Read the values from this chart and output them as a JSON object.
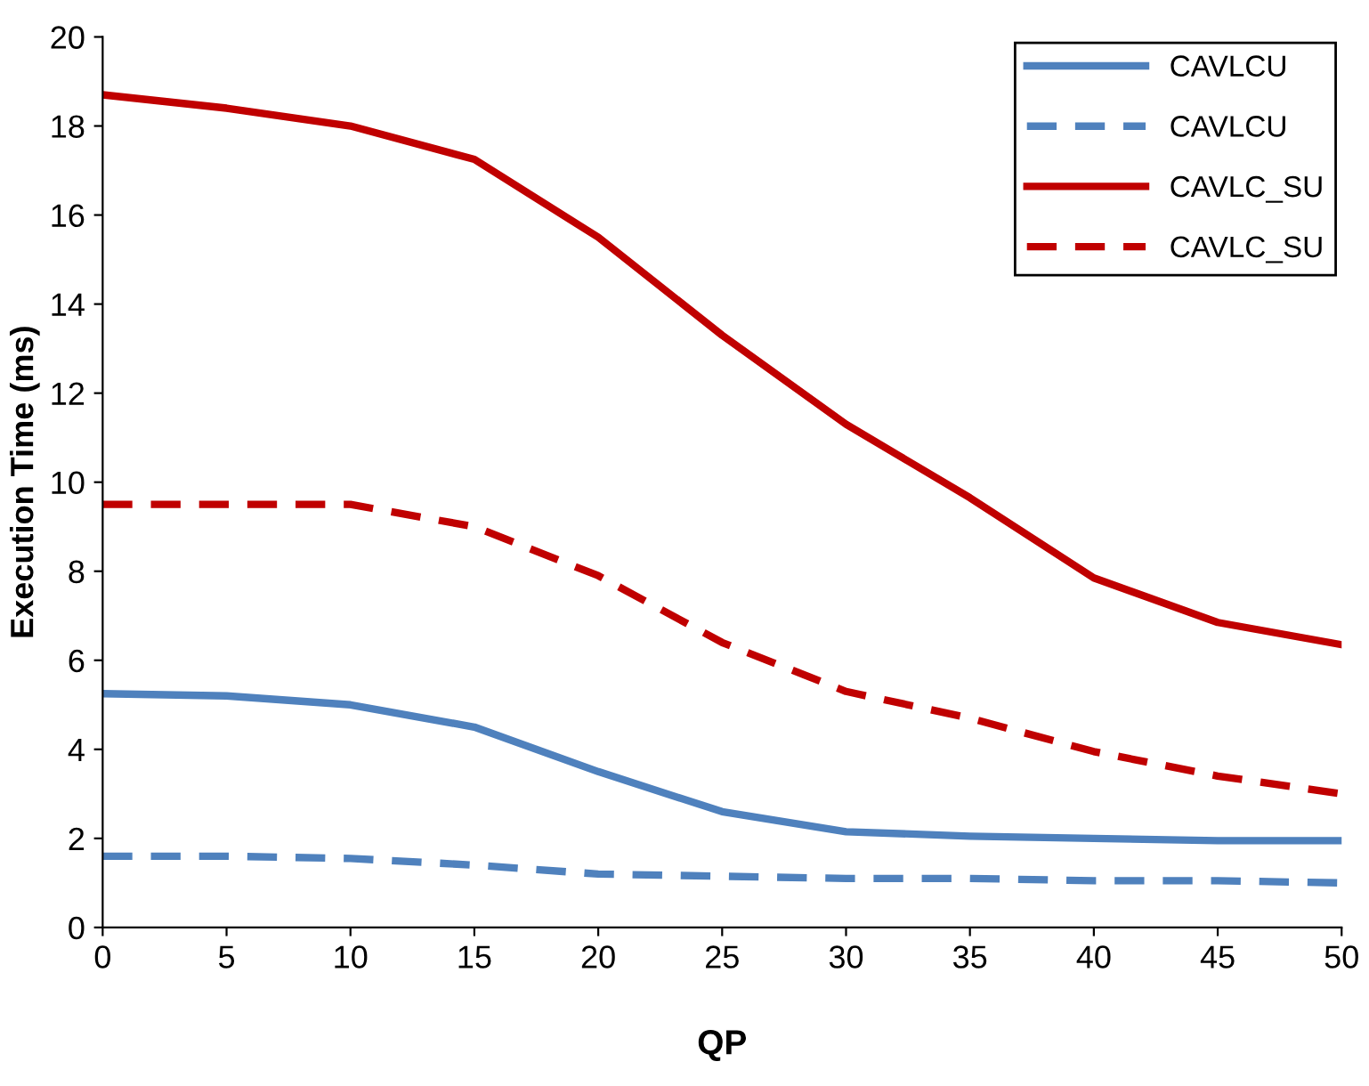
{
  "chart_data": {
    "type": "line",
    "xlabel": "QP",
    "ylabel": "Execution Time (ms)",
    "x": [
      0,
      5,
      10,
      15,
      20,
      25,
      30,
      35,
      40,
      45,
      50
    ],
    "series": [
      {
        "name": "CAVLCU",
        "color": "#4f81bd",
        "line_style": "solid",
        "values": [
          5.25,
          5.2,
          5.0,
          4.5,
          3.5,
          2.6,
          2.15,
          2.05,
          2.0,
          1.95,
          1.95
        ]
      },
      {
        "name": "CAVLCU",
        "color": "#4f81bd",
        "line_style": "dashed",
        "values": [
          1.6,
          1.6,
          1.55,
          1.4,
          1.2,
          1.15,
          1.1,
          1.1,
          1.05,
          1.05,
          1.0
        ]
      },
      {
        "name": "CAVLC_SU",
        "color": "#c00000",
        "line_style": "solid",
        "values": [
          18.7,
          18.4,
          18.0,
          17.25,
          15.5,
          13.3,
          11.3,
          9.65,
          7.85,
          6.85,
          6.35
        ]
      },
      {
        "name": "CAVLC_SU",
        "color": "#c00000",
        "line_style": "dashed",
        "values": [
          9.5,
          9.5,
          9.5,
          9.0,
          7.9,
          6.4,
          5.3,
          4.7,
          3.95,
          3.4,
          3.0
        ]
      }
    ],
    "xlim": [
      0,
      50
    ],
    "xticks": [
      0,
      5,
      10,
      15,
      20,
      25,
      30,
      35,
      40,
      45,
      50
    ],
    "ylim": [
      0,
      20
    ],
    "yticks": [
      0,
      2,
      4,
      6,
      8,
      10,
      12,
      14,
      16,
      18,
      20
    ],
    "grid": false,
    "legend": "top right",
    "marker": "none"
  }
}
